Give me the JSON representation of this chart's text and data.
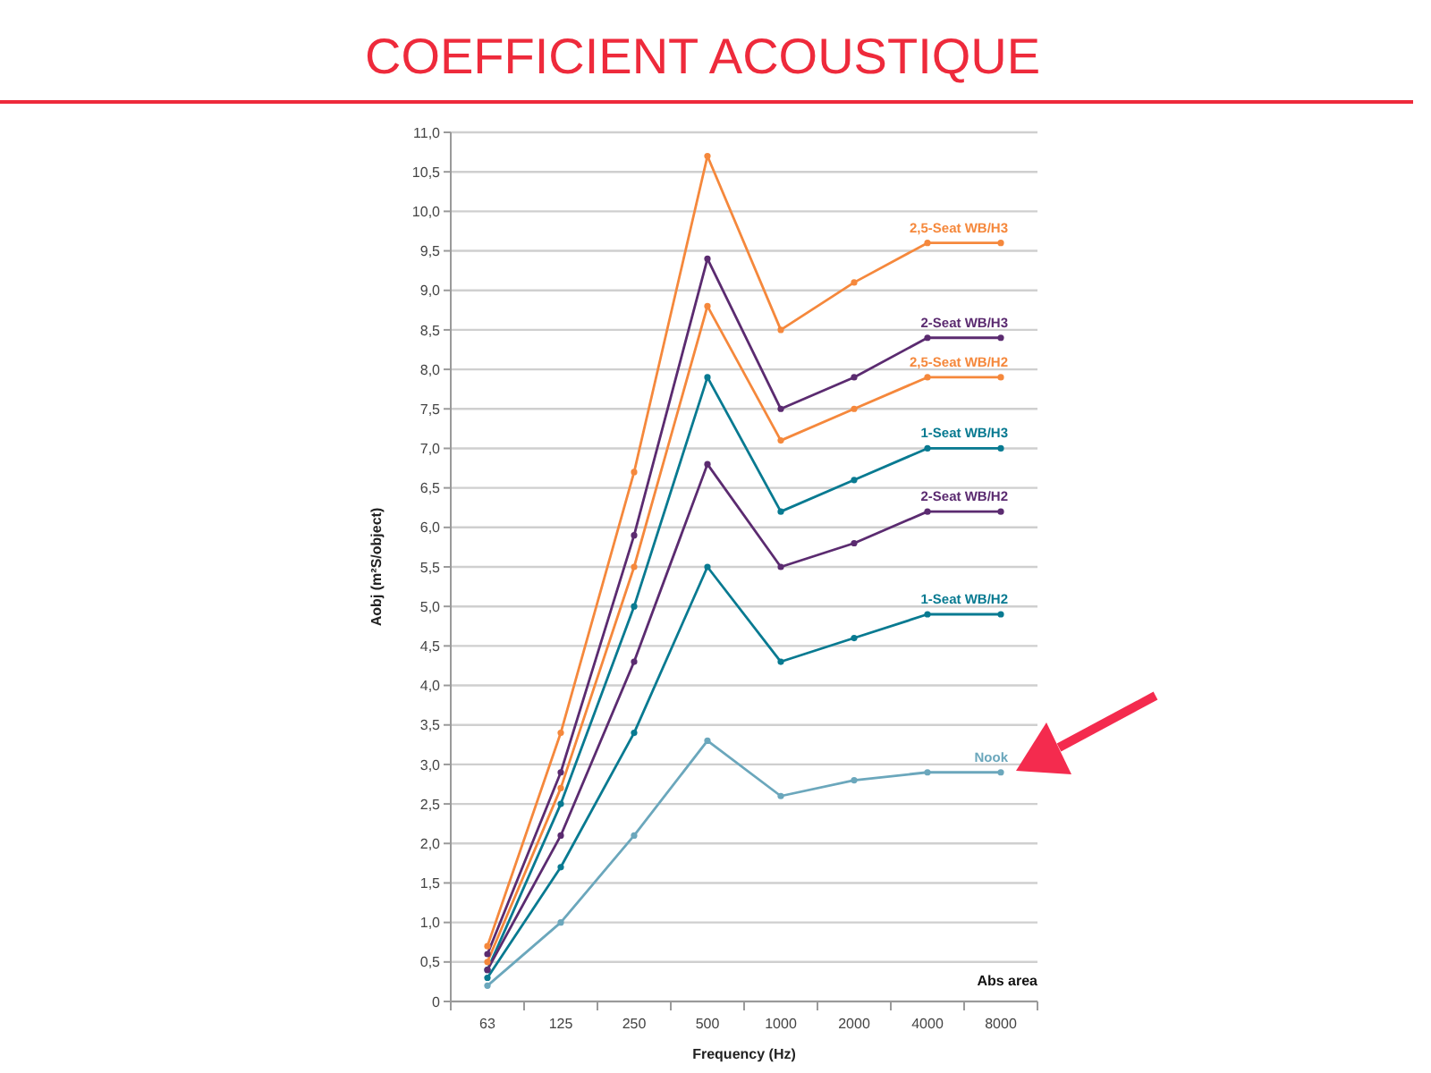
{
  "chart_data": {
    "type": "line",
    "title": "COEFFICIENT ACOUSTIQUE",
    "xlabel": "Frequency (Hz)",
    "ylabel": "Aobj (m²S/object)",
    "annotations": [
      "Abs area"
    ],
    "categories": [
      "63",
      "125",
      "250",
      "500",
      "1000",
      "2000",
      "4000",
      "8000"
    ],
    "series": [
      {
        "name": "2,5-Seat WB/H3",
        "color": "#f5883c",
        "values": [
          0.7,
          3.4,
          6.7,
          10.7,
          8.5,
          9.1,
          9.6,
          9.6
        ]
      },
      {
        "name": "2-Seat WB/H3",
        "color": "#5b2b70",
        "values": [
          0.6,
          2.9,
          5.9,
          9.4,
          7.5,
          7.9,
          8.4,
          8.4
        ]
      },
      {
        "name": "2,5-Seat WB/H2",
        "color": "#f5883c",
        "values": [
          0.5,
          2.7,
          5.5,
          8.8,
          7.1,
          7.5,
          7.9,
          7.9
        ]
      },
      {
        "name": "1-Seat WB/H3",
        "color": "#087a91",
        "values": [
          0.4,
          2.5,
          5.0,
          7.9,
          6.2,
          6.6,
          7.0,
          7.0
        ]
      },
      {
        "name": "2-Seat WB/H2",
        "color": "#5b2b70",
        "values": [
          0.4,
          2.1,
          4.3,
          6.8,
          5.5,
          5.8,
          6.2,
          6.2
        ]
      },
      {
        "name": "1-Seat WB/H2",
        "color": "#087a91",
        "values": [
          0.3,
          1.7,
          3.4,
          5.5,
          4.3,
          4.6,
          4.9,
          4.9
        ]
      },
      {
        "name": "Nook",
        "color": "#6ba7bc",
        "values": [
          0.2,
          1.0,
          2.1,
          3.3,
          2.6,
          2.8,
          2.9,
          2.9
        ]
      }
    ],
    "ylim": [
      0,
      11
    ],
    "yticks": [
      0,
      {
        "value": 0.5,
        "label": "0,5"
      },
      {
        "value": 1,
        "label": "1,0"
      },
      {
        "value": 1.5,
        "label": "1,5"
      },
      {
        "value": 2,
        "label": "2,0"
      },
      {
        "value": 2.5,
        "label": "2,5"
      },
      {
        "value": 3,
        "label": "3,0"
      },
      {
        "value": 3.5,
        "label": "3,5"
      },
      {
        "value": 4,
        "label": "4,0"
      },
      {
        "value": 4.5,
        "label": "4,5"
      },
      {
        "value": 5,
        "label": "5,0"
      },
      {
        "value": 5.5,
        "label": "5,5"
      },
      {
        "value": 6,
        "label": "6,0"
      },
      {
        "value": 6.5,
        "label": "6,5"
      },
      {
        "value": 7,
        "label": "7,0"
      },
      {
        "value": 7.5,
        "label": "7,5"
      },
      {
        "value": 8,
        "label": "8,0"
      },
      {
        "value": 8.5,
        "label": "8,5"
      },
      {
        "value": 9,
        "label": "9,0"
      },
      {
        "value": 9.5,
        "label": "9,5"
      },
      {
        "value": 10,
        "label": "10,0"
      },
      {
        "value": 10.5,
        "label": "10,5"
      },
      {
        "value": 11,
        "label": "11,0"
      }
    ],
    "grid": "y",
    "marker": "circle",
    "line_style": "solid"
  }
}
